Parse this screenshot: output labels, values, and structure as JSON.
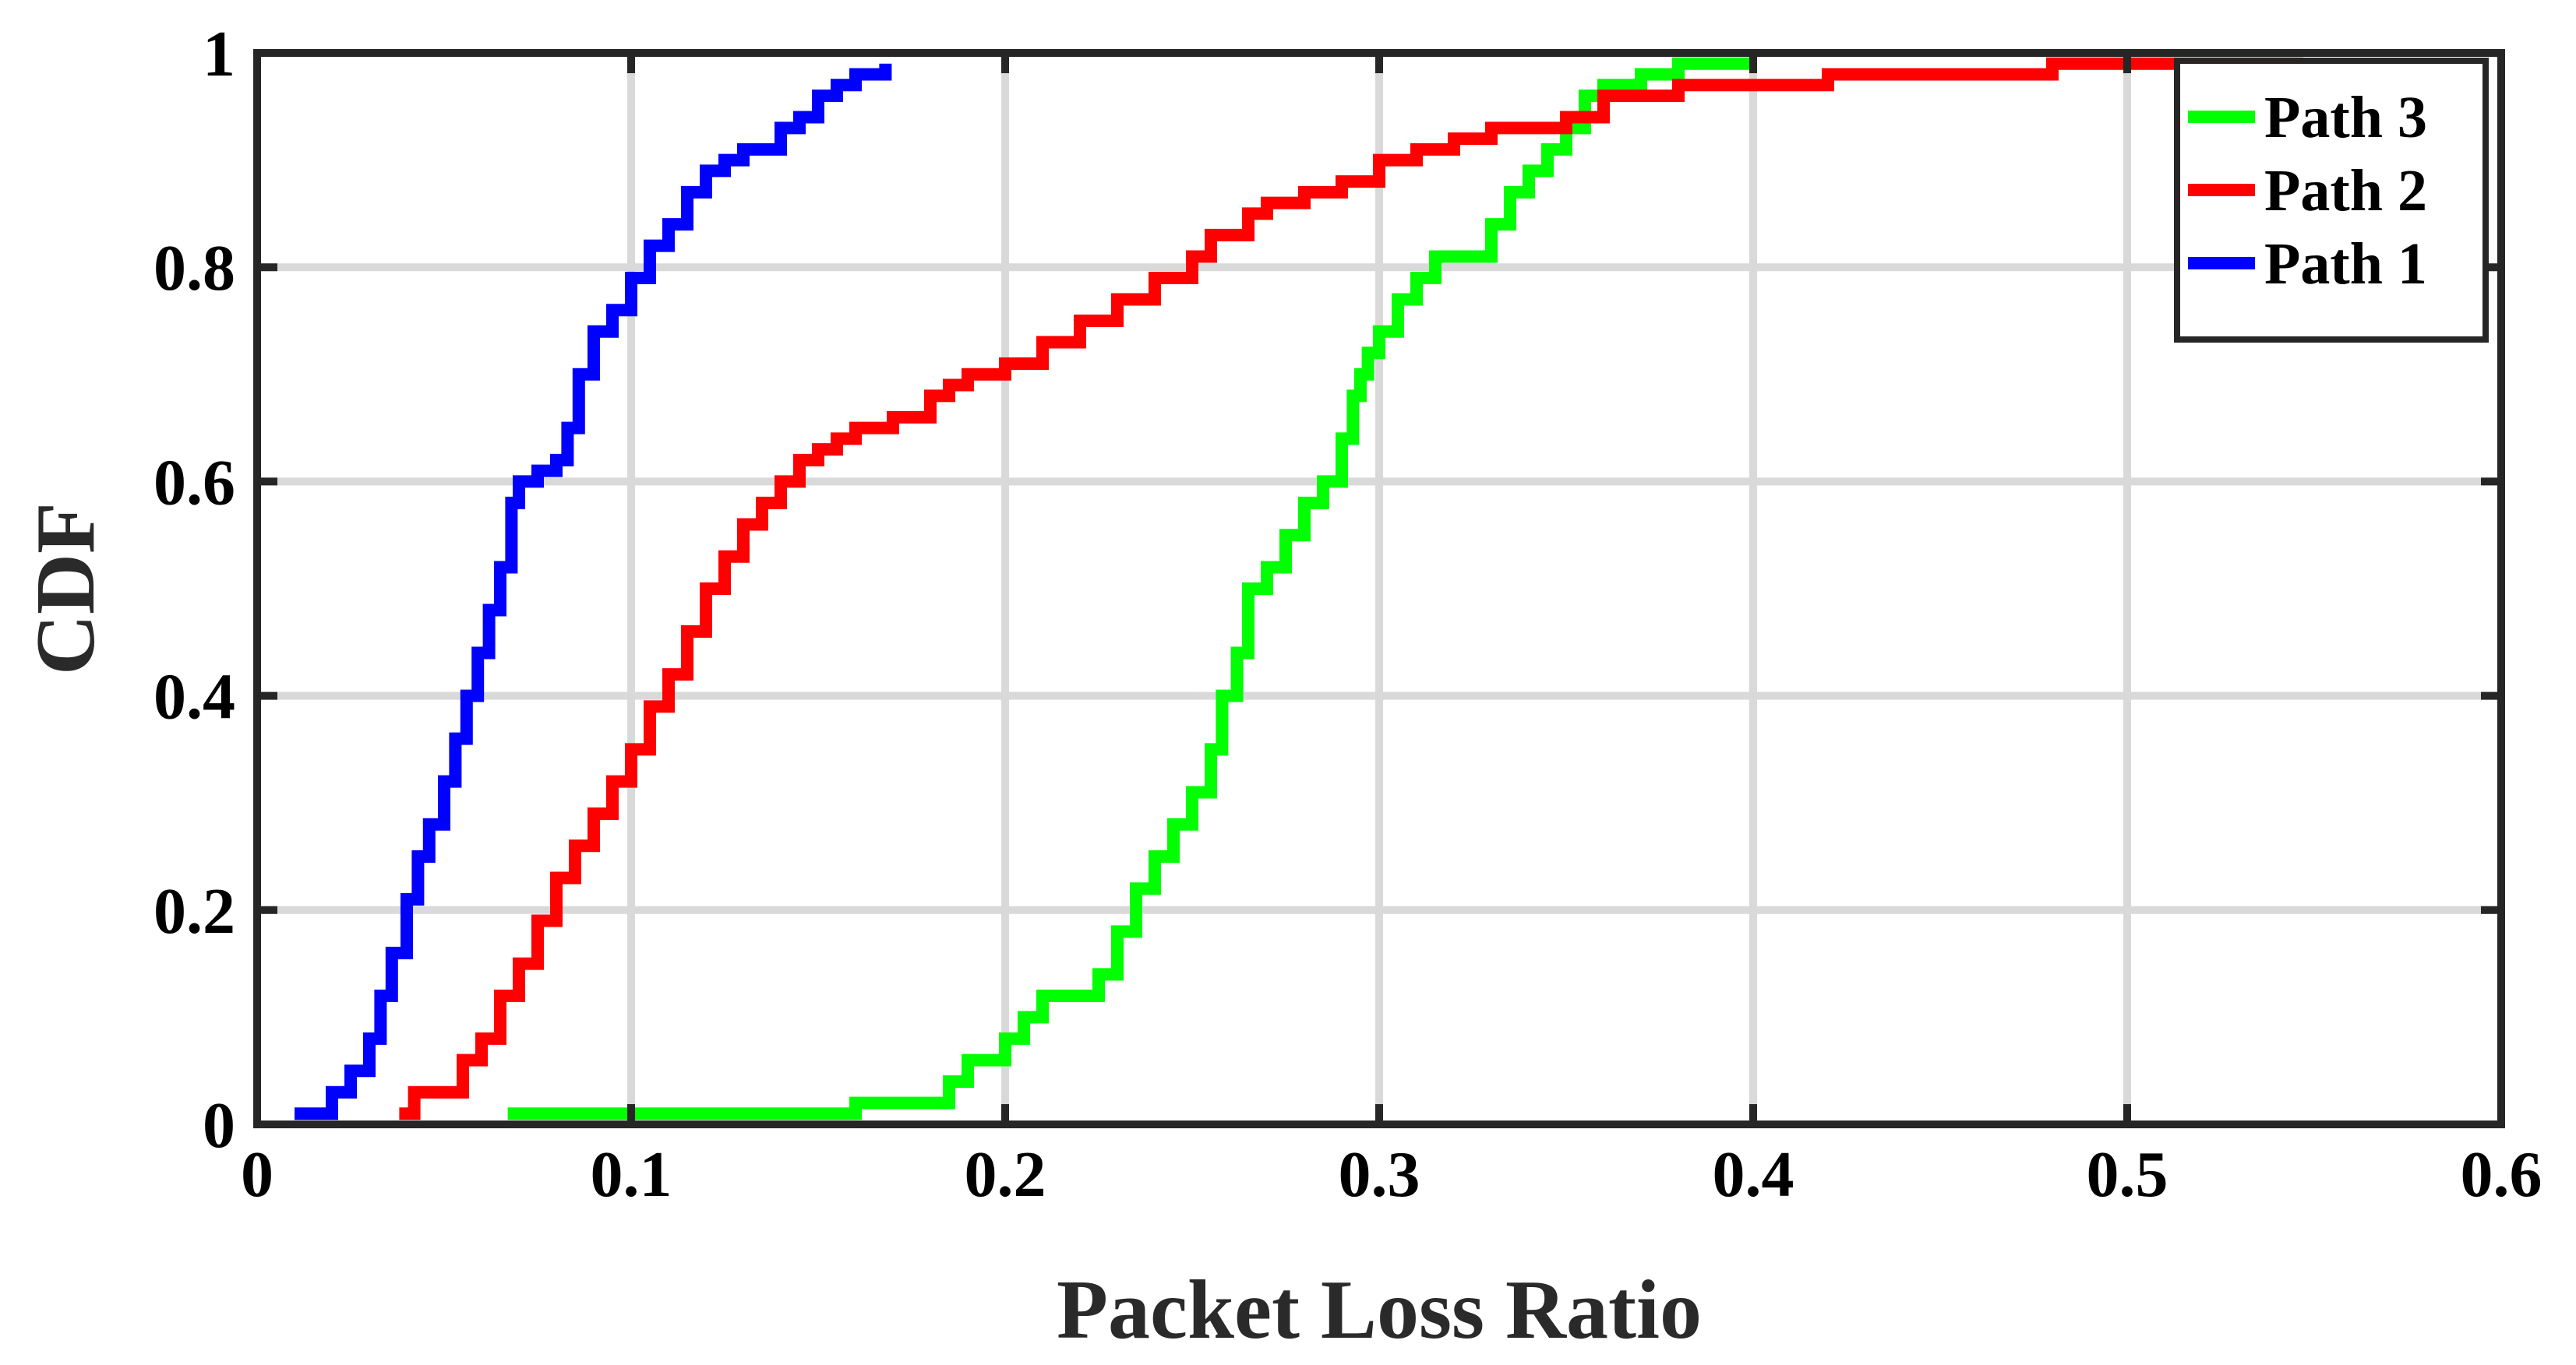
{
  "chart_data": {
    "type": "line",
    "step": true,
    "xlabel": "Packet Loss Ratio",
    "ylabel": "CDF",
    "xlim": [
      0,
      0.6
    ],
    "ylim": [
      0,
      1
    ],
    "xticks": [
      0,
      0.1,
      0.2,
      0.3,
      0.4,
      0.5,
      0.6
    ],
    "xtick_labels": [
      "0",
      "0.1",
      "0.2",
      "0.3",
      "0.4",
      "0.5",
      "0.6"
    ],
    "yticks": [
      0,
      0.2,
      0.4,
      0.6,
      0.8,
      1
    ],
    "ytick_labels": [
      "0",
      "0.2",
      "0.4",
      "0.6",
      "0.8",
      "1"
    ],
    "grid": true,
    "legend_position": "top-right",
    "series": [
      {
        "name": "Path 3",
        "color": "#00ff00",
        "x": [
          0.067,
          0.16,
          0.185,
          0.19,
          0.2,
          0.205,
          0.21,
          0.225,
          0.23,
          0.235,
          0.24,
          0.245,
          0.25,
          0.255,
          0.258,
          0.262,
          0.265,
          0.27,
          0.275,
          0.28,
          0.285,
          0.29,
          0.293,
          0.295,
          0.297,
          0.3,
          0.305,
          0.31,
          0.315,
          0.33,
          0.335,
          0.34,
          0.345,
          0.35,
          0.355,
          0.36,
          0.37,
          0.38,
          0.4
        ],
        "y": [
          0.01,
          0.02,
          0.04,
          0.06,
          0.08,
          0.1,
          0.12,
          0.14,
          0.18,
          0.22,
          0.25,
          0.28,
          0.31,
          0.35,
          0.4,
          0.44,
          0.5,
          0.52,
          0.55,
          0.58,
          0.6,
          0.64,
          0.68,
          0.7,
          0.72,
          0.74,
          0.77,
          0.79,
          0.81,
          0.84,
          0.87,
          0.89,
          0.91,
          0.93,
          0.96,
          0.97,
          0.98,
          0.99,
          0.99
        ]
      },
      {
        "name": "Path 2",
        "color": "#ff0000",
        "x": [
          0.038,
          0.042,
          0.055,
          0.06,
          0.065,
          0.07,
          0.075,
          0.08,
          0.085,
          0.09,
          0.095,
          0.1,
          0.105,
          0.11,
          0.115,
          0.12,
          0.125,
          0.13,
          0.135,
          0.14,
          0.145,
          0.15,
          0.155,
          0.16,
          0.17,
          0.18,
          0.185,
          0.19,
          0.2,
          0.21,
          0.22,
          0.23,
          0.24,
          0.25,
          0.255,
          0.265,
          0.27,
          0.28,
          0.29,
          0.3,
          0.31,
          0.32,
          0.33,
          0.35,
          0.36,
          0.38,
          0.42,
          0.48,
          0.547
        ],
        "y": [
          0.01,
          0.03,
          0.06,
          0.08,
          0.12,
          0.15,
          0.19,
          0.23,
          0.26,
          0.29,
          0.32,
          0.35,
          0.39,
          0.42,
          0.46,
          0.5,
          0.53,
          0.56,
          0.58,
          0.6,
          0.62,
          0.63,
          0.64,
          0.65,
          0.66,
          0.68,
          0.69,
          0.7,
          0.71,
          0.73,
          0.75,
          0.77,
          0.79,
          0.81,
          0.83,
          0.85,
          0.86,
          0.87,
          0.88,
          0.9,
          0.91,
          0.92,
          0.93,
          0.94,
          0.96,
          0.97,
          0.98,
          0.99,
          0.99
        ]
      },
      {
        "name": "Path 1",
        "color": "#0000ff",
        "x": [
          0.01,
          0.02,
          0.025,
          0.03,
          0.033,
          0.036,
          0.04,
          0.043,
          0.046,
          0.05,
          0.053,
          0.056,
          0.059,
          0.062,
          0.065,
          0.068,
          0.07,
          0.075,
          0.08,
          0.083,
          0.086,
          0.09,
          0.095,
          0.1,
          0.105,
          0.11,
          0.115,
          0.12,
          0.125,
          0.13,
          0.14,
          0.145,
          0.15,
          0.155,
          0.16,
          0.168
        ],
        "y": [
          0.01,
          0.03,
          0.05,
          0.08,
          0.12,
          0.16,
          0.21,
          0.25,
          0.28,
          0.32,
          0.36,
          0.4,
          0.44,
          0.48,
          0.52,
          0.58,
          0.6,
          0.61,
          0.62,
          0.65,
          0.7,
          0.74,
          0.76,
          0.79,
          0.82,
          0.84,
          0.87,
          0.89,
          0.9,
          0.91,
          0.93,
          0.94,
          0.96,
          0.97,
          0.98,
          0.99
        ]
      }
    ]
  }
}
